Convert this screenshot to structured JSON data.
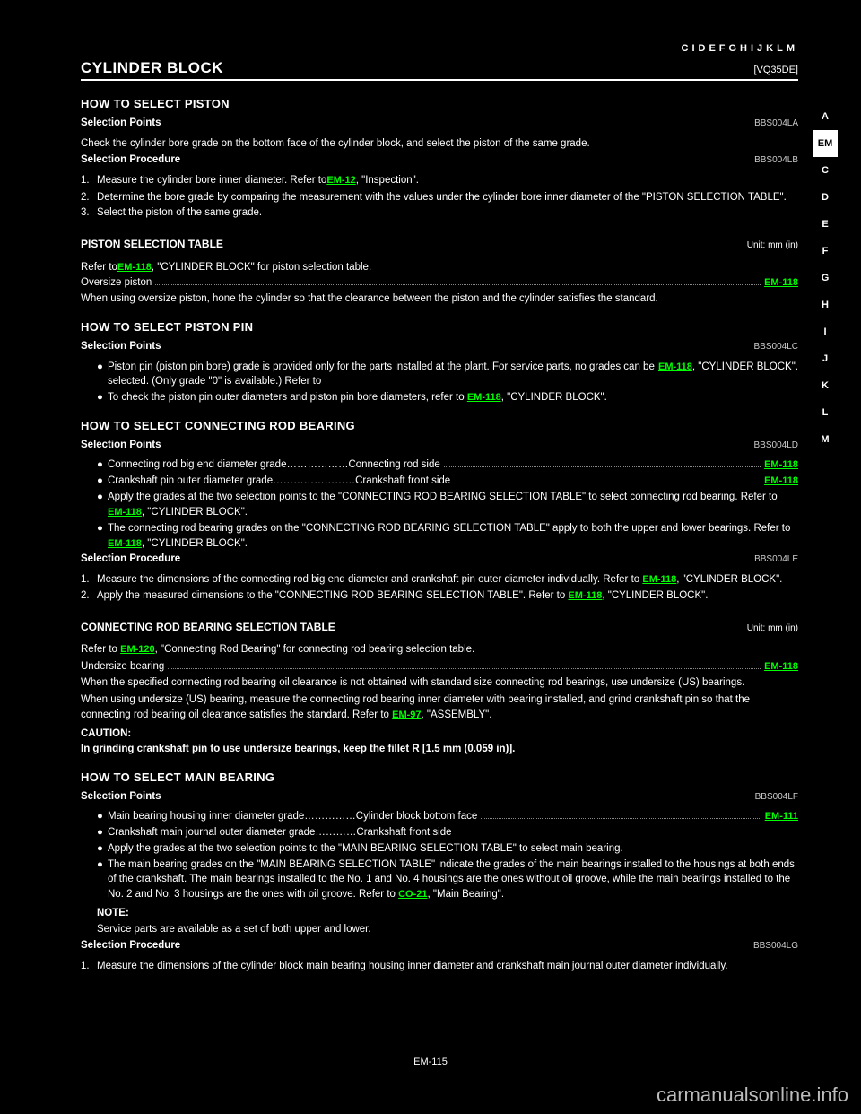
{
  "header_letters": "CIDEFGHIJKLM",
  "side_tabs": [
    "A",
    "EM",
    "C",
    "D",
    "E",
    "F",
    "G",
    "H",
    "I",
    "J",
    "K",
    "L",
    "M"
  ],
  "active_tab_index": 1,
  "title_left": "CYLINDER BLOCK",
  "title_right": "[VQ35DE]",
  "h2_1": "HOW TO SELECT PISTON",
  "proc1": {
    "label": "Selection Points",
    "code": "BBS004LA"
  },
  "proc1_text": "Check the cylinder bore grade on the bottom face of the cylinder block, and select the piston of the same grade.",
  "proc2": {
    "label": "Selection Procedure",
    "code": "BBS004LB"
  },
  "sel_step1_lead": "Measure the cylinder bore inner diameter. Refer to ",
  "sel_step1_link": "EM-12",
  "sel_step1_tail": ", \"Inspection\".",
  "sel_step2": "Determine the bore grade by comparing the measurement with the values under the cylinder bore inner diameter of the \"PISTON SELECTION TABLE\".",
  "sel_step3": "Select the piston of the same grade.",
  "piston_table_title": "PISTON SELECTION TABLE",
  "unit_label": "Unit: mm (in)",
  "piston_table_lead": "Refer to ",
  "piston_table_link": "EM-118",
  "piston_table_tail": ", \"CYLINDER BLOCK\" for piston selection table.",
  "piston_os_lead": "Oversize piston             ",
  "piston_os_link": "EM-118",
  "piston_os_tail": "",
  "piston_os_note": "When using oversize piston, hone the cylinder so that the clearance between the piston and the cylinder satisfies the standard.",
  "h2_2": "HOW TO SELECT PISTON PIN",
  "proc3": {
    "label": "Selection Points",
    "code": "BBS004LC"
  },
  "bullet1_lead": "Piston pin (piston pin bore) grade is provided only for the parts installed at the plant. For service parts, no grades can be selected. (Only grade \"0\" is available.) Refer to ",
  "bullet1_link": "EM-118",
  "bullet1_tail": ", \"CYLINDER BLOCK\".",
  "bullet2_lead": "To check the piston pin outer diameters and piston pin bore diameters, refer to ",
  "bullet2_link": "EM-118",
  "bullet2_tail": ", \"CYLINDER BLOCK\".",
  "h2_3": "HOW TO SELECT CONNECTING ROD BEARING",
  "proc4": {
    "label": "Selection Points",
    "code": "BBS004LD"
  },
  "crb_bullets": [
    {
      "lead": "Connecting rod big end diameter grade………………Connecting rod side",
      "link": "EM-118"
    },
    {
      "lead": "Crankshaft pin outer diameter grade……………………Crankshaft front side",
      "link": "EM-118"
    },
    {
      "lead": "Apply the grades at the two selection points to the \"CONNECTING ROD BEARING SELECTION TABLE\" to select connecting rod bearing. Refer to ",
      "link": "EM-118",
      "tail": ", \"CYLINDER BLOCK\"."
    },
    {
      "lead": "The connecting rod bearing grades on the \"CONNECTING ROD BEARING SELECTION TABLE\" apply to both the upper and lower bearings. Refer to ",
      "link": "EM-118",
      "tail": ", \"CYLINDER BLOCK\"."
    }
  ],
  "proc5": {
    "label": "Selection Procedure",
    "code": "BBS004LE"
  },
  "crb_step1_lead": "Measure the dimensions of the connecting rod big end diameter and crankshaft pin outer diameter individually. Refer to ",
  "crb_step1_link": "EM-118",
  "crb_step1_tail": ", \"CYLINDER BLOCK\".",
  "crb_step2_lead": "Apply the measured dimensions to the \"CONNECTING ROD BEARING SELECTION TABLE\". Refer to ",
  "crb_step2_link": "EM-118",
  "crb_step2_tail": ", \"CYLINDER BLOCK\".",
  "crb_table_title": "CONNECTING ROD BEARING SELECTION TABLE",
  "crb_table_lead": "Refer to ",
  "crb_table_link": "EM-120",
  "crb_table_tail": ", \"Connecting Rod Bearing\" for connecting rod bearing selection table.",
  "crb_us_lead": "Undersize bearing            ",
  "crb_us_link": "EM-118",
  "crb_us_note1": "When the specified connecting rod bearing oil clearance is not obtained with standard size connecting rod bearings, use undersize (US) bearings.",
  "crb_us_note2_lead": "When using undersize (US) bearing, measure the connecting rod bearing inner diameter with bearing installed, and grind crankshaft pin so that the connecting rod bearing oil clearance satisfies the standard. Refer to ",
  "crb_us_note2_link": "EM-97",
  "crb_us_note2_tail": ", \"ASSEMBLY\".",
  "caution_label": "CAUTION:",
  "caution_text": "In grinding crankshaft pin to use undersize bearings, keep the fillet R [1.5 mm (0.059 in)].",
  "h2_4": "HOW TO SELECT MAIN BEARING",
  "proc6": {
    "label": "Selection Points",
    "code": "BBS004LF"
  },
  "mb_bullets": [
    {
      "lead": "Main bearing housing inner diameter grade……………Cylinder block bottom face",
      "link": "EM-111"
    },
    {
      "lead": "Crankshaft main journal outer diameter grade…………Crankshaft front side"
    },
    {
      "lead": "Apply the grades at the two selection points to the \"MAIN BEARING SELECTION TABLE\" to select main bearing."
    },
    {
      "lead": "The main bearing grades on the \"MAIN BEARING SELECTION TABLE\" indicate the grades of the main bearings installed to the housings at both ends of the crankshaft. The main bearings installed to the No. 1 and No. 4 housings are the ones without oil groove, while the main bearings installed to the No. 2 and No. 3 housings are the ones with oil groove. Refer to ",
      "link": "CO-21",
      "tail": ", \"Main Bearing\"."
    }
  ],
  "note_label": "NOTE:",
  "mb_note": "Service parts are available as a set of both upper and lower.",
  "proc7": {
    "label": "Selection Procedure",
    "code": "BBS004LG"
  },
  "mb_step1": "Measure the dimensions of the cylinder block main bearing housing inner diameter and crankshaft main journal outer diameter individually.",
  "footer_text": "EM-115",
  "watermark": "carmanualsonline.info"
}
